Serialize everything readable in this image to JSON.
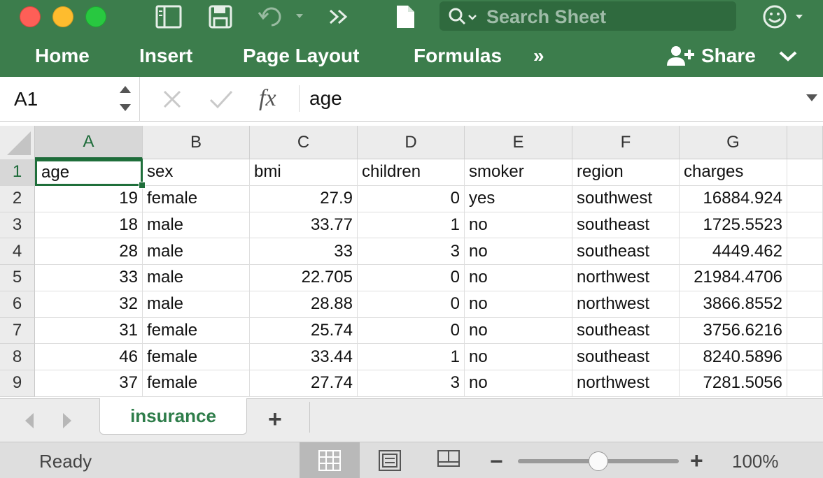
{
  "titlebar": {
    "search_placeholder": "Search Sheet"
  },
  "ribbon": {
    "tabs": [
      "Home",
      "Insert",
      "Page Layout",
      "Formulas"
    ],
    "more": "»",
    "share_label": "Share"
  },
  "formula_bar": {
    "name_box": "A1",
    "fx_symbol": "fx",
    "content": "age"
  },
  "grid": {
    "column_letters": [
      "A",
      "B",
      "C",
      "D",
      "E",
      "F",
      "G"
    ],
    "row_numbers": [
      "1",
      "2",
      "3",
      "4",
      "5",
      "6",
      "7",
      "8",
      "9"
    ],
    "rows": [
      [
        "age",
        "sex",
        "bmi",
        "children",
        "smoker",
        "region",
        "charges"
      ],
      [
        "19",
        "female",
        "27.9",
        "0",
        "yes",
        "southwest",
        "16884.924"
      ],
      [
        "18",
        "male",
        "33.77",
        "1",
        "no",
        "southeast",
        "1725.5523"
      ],
      [
        "28",
        "male",
        "33",
        "3",
        "no",
        "southeast",
        "4449.462"
      ],
      [
        "33",
        "male",
        "22.705",
        "0",
        "no",
        "northwest",
        "21984.4706"
      ],
      [
        "32",
        "male",
        "28.88",
        "0",
        "no",
        "northwest",
        "3866.8552"
      ],
      [
        "31",
        "female",
        "25.74",
        "0",
        "no",
        "southeast",
        "3756.6216"
      ],
      [
        "46",
        "female",
        "33.44",
        "1",
        "no",
        "southeast",
        "8240.5896"
      ],
      [
        "37",
        "female",
        "27.74",
        "3",
        "no",
        "northwest",
        "7281.5056"
      ]
    ]
  },
  "sheets": {
    "active": "insurance",
    "add_label": "+"
  },
  "status": {
    "text": "Ready",
    "zoom_minus": "−",
    "zoom_plus": "+",
    "zoom_label": "100%",
    "zoom_fraction": 0.5
  },
  "colors": {
    "accent": "#3c7d4c",
    "selection": "#1f6f3b"
  }
}
